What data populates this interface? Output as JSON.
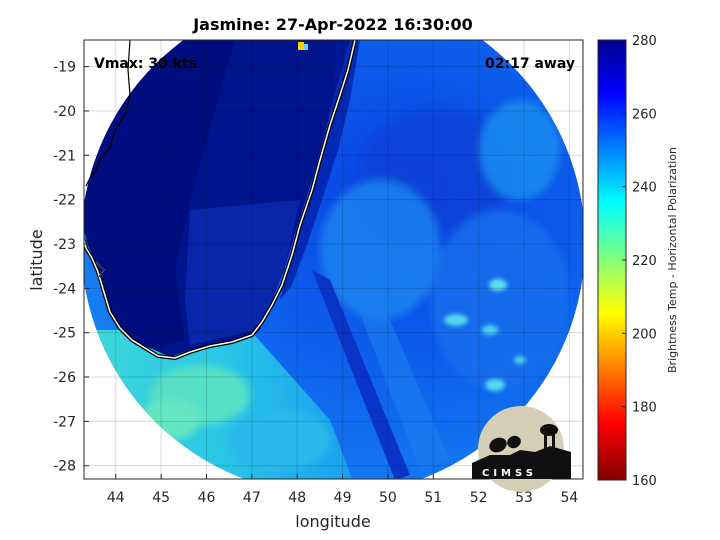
{
  "title": "Jasmine: 27-Apr-2022 16:30:00",
  "annotations": {
    "vmax": "Vmax: 30 kts",
    "time_away": "02:17 away"
  },
  "axes": {
    "xlabel": "longitude",
    "ylabel": "latitude",
    "xlim": [
      43.3,
      54.3
    ],
    "ylim": [
      -28.3,
      -18.4
    ],
    "xticks": [
      "44",
      "45",
      "46",
      "47",
      "48",
      "49",
      "50",
      "51",
      "52",
      "53",
      "54"
    ],
    "yticks": [
      "-19",
      "-20",
      "-21",
      "-22",
      "-23",
      "-24",
      "-25",
      "-26",
      "-27",
      "-28"
    ],
    "grid": true
  },
  "colorbar": {
    "label": "Brightness Temp - Horizontal Polarization",
    "ticks": [
      "280",
      "260",
      "240",
      "220",
      "200",
      "180",
      "160"
    ],
    "range": [
      160,
      280
    ],
    "colormap": [
      "#00008f",
      "#0000ff",
      "#00ffff",
      "#ffff00",
      "#ff0000",
      "#800000"
    ]
  },
  "chart_data": {
    "type": "heatmap",
    "title": "Jasmine: 27-Apr-2022 16:30:00",
    "xlabel": "longitude",
    "ylabel": "latitude",
    "xlim": [
      43.3,
      54.3
    ],
    "ylim": [
      -28.3,
      -18.4
    ],
    "value_label": "Brightness Temp - Horizontal Polarization",
    "value_range": [
      160,
      280
    ],
    "swath": {
      "center_lon": 48.9,
      "center_lat": -23.6
    },
    "regions": [
      {
        "region": "land (Madagascar)",
        "approx_value": 275
      },
      {
        "region": "ocean east",
        "approx_value": 258
      },
      {
        "region": "ocean southwest",
        "approx_value": 240
      }
    ]
  },
  "logo": {
    "text": "CIMSS"
  }
}
